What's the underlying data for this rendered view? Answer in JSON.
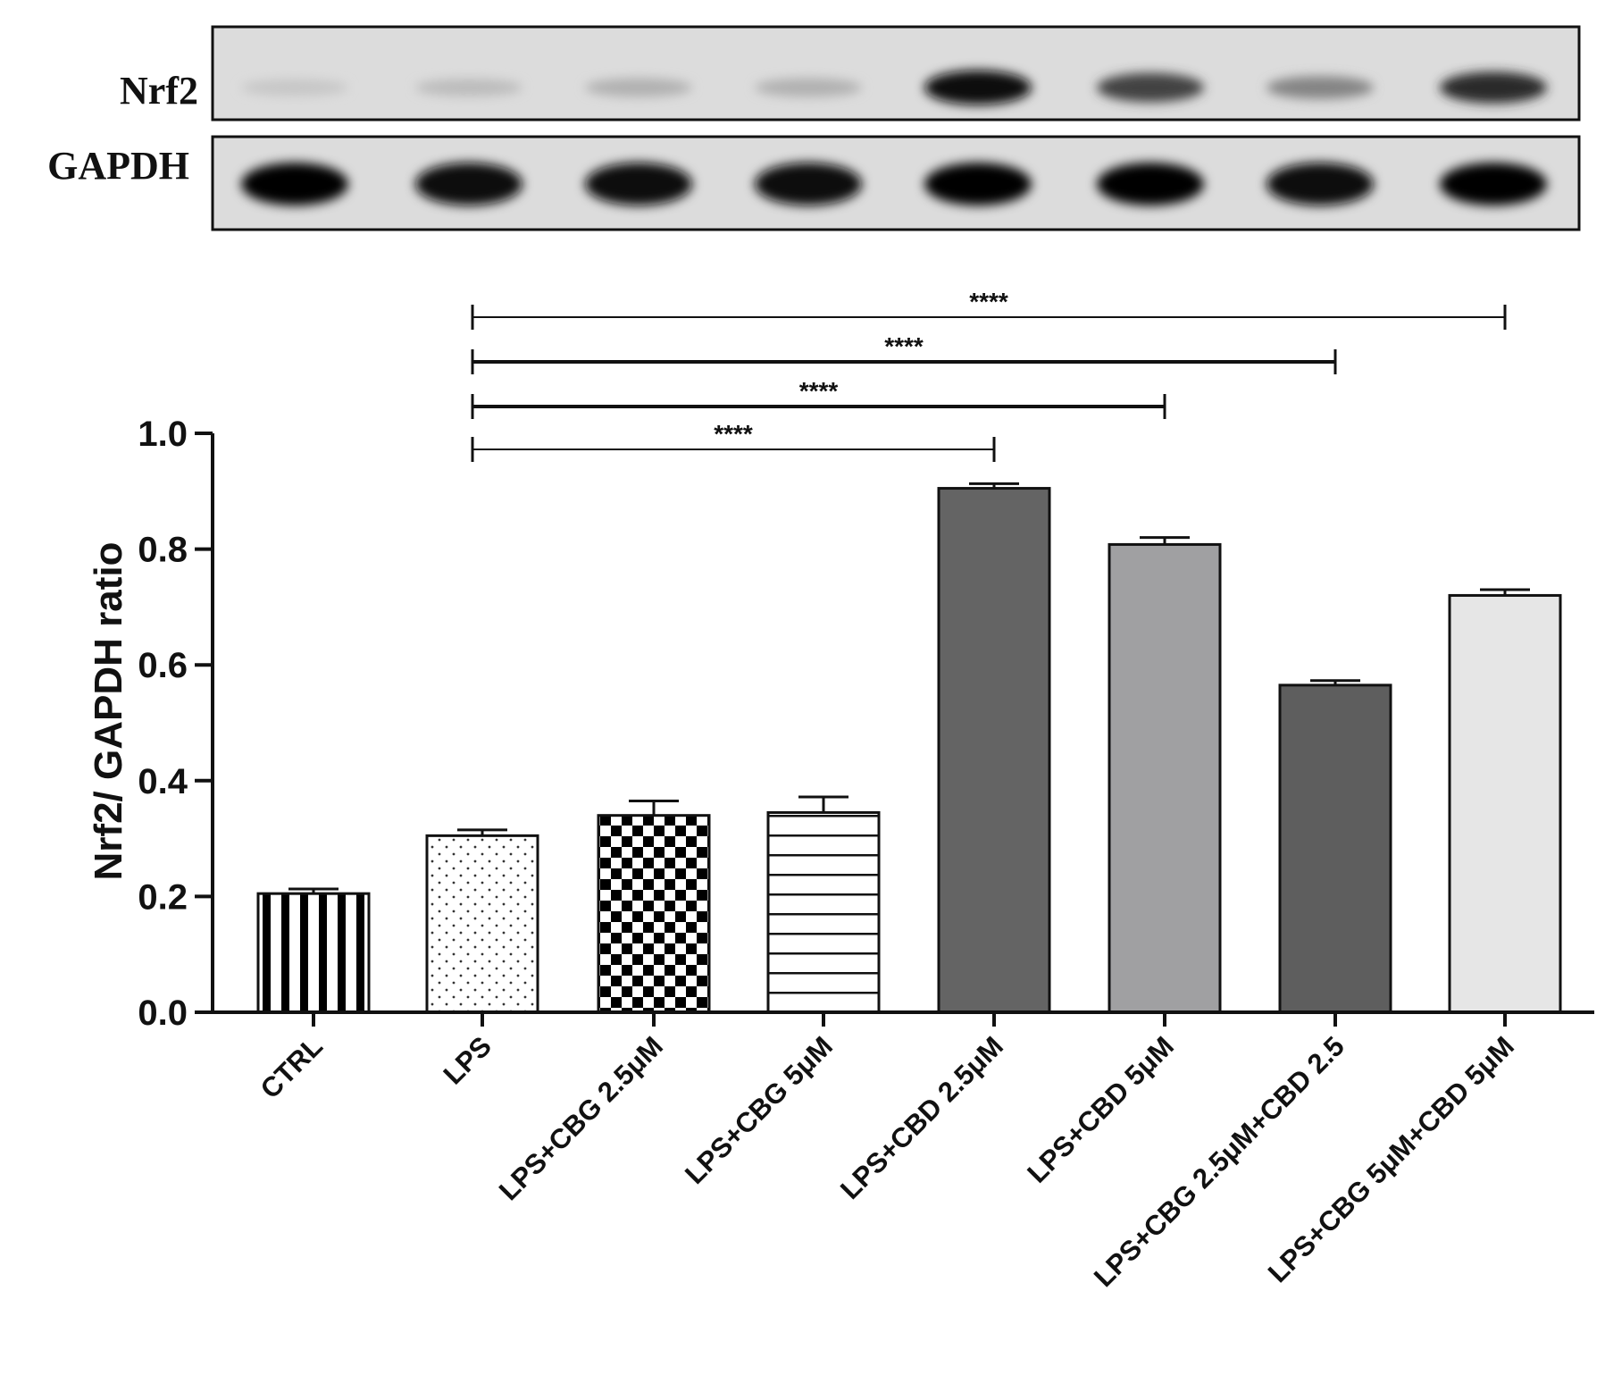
{
  "blot": {
    "rows": [
      {
        "label": "Nrf2",
        "intensities": [
          0.1,
          0.15,
          0.2,
          0.2,
          0.95,
          0.7,
          0.4,
          0.8
        ]
      },
      {
        "label": "GAPDH",
        "intensities": [
          1.0,
          0.95,
          0.95,
          0.95,
          1.0,
          1.0,
          0.95,
          1.0
        ]
      }
    ]
  },
  "chart_data": {
    "type": "bar",
    "categories": [
      "CTRL",
      "LPS",
      "LPS+CBG 2.5μM",
      "LPS+CBG 5μM",
      "LPS+CBD 2.5μM",
      "LPS+CBD 5μM",
      "LPS+CBG 2.5μM+CBD 2.5",
      "LPS+CBG 5μM+CBD 5μM"
    ],
    "values": [
      0.205,
      0.305,
      0.34,
      0.345,
      0.905,
      0.808,
      0.565,
      0.72
    ],
    "errors": [
      0.008,
      0.01,
      0.025,
      0.027,
      0.008,
      0.012,
      0.008,
      0.01
    ],
    "fills": [
      "vertical-stripes",
      "dots",
      "checkerboard",
      "horizontal-lines",
      "#646464",
      "#a0a0a2",
      "#5e5e5e",
      "#e6e6e6"
    ],
    "ylabel": "Nrf2/ GAPDH ratio",
    "ylim": [
      0,
      1.0
    ],
    "yticks": [
      0.0,
      0.2,
      0.4,
      0.6,
      0.8,
      1.0
    ],
    "ytick_labels": [
      "0.0",
      "0.2",
      "0.4",
      "0.6",
      "0.8",
      "1.0"
    ],
    "significance": [
      {
        "from": 1,
        "to": 4,
        "label": "****"
      },
      {
        "from": 1,
        "to": 5,
        "label": "****"
      },
      {
        "from": 1,
        "to": 6,
        "label": "****"
      },
      {
        "from": 1,
        "to": 7,
        "label": "****"
      }
    ]
  }
}
